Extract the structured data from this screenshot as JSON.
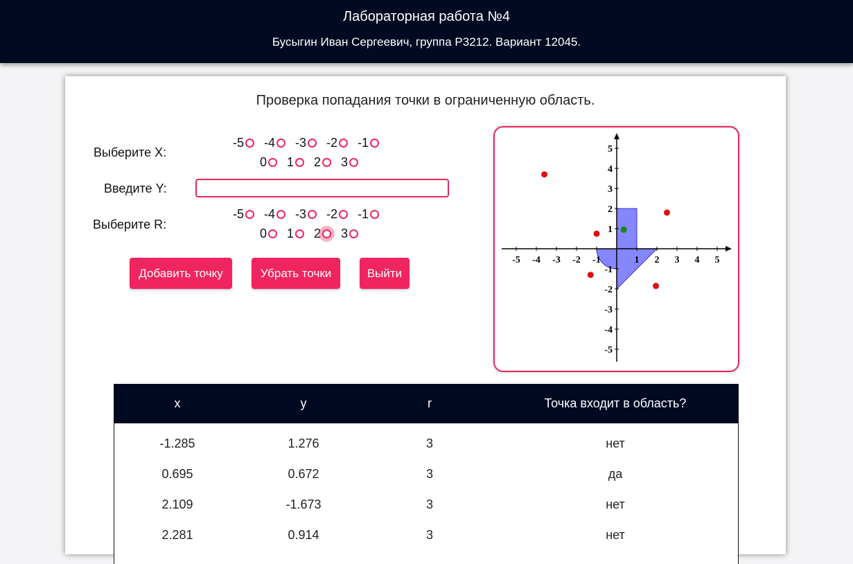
{
  "header": {
    "title": "Лабораторная работа №4",
    "subtitle": "Бусыгин Иван Сергеевич, группа P3212. Вариант 12045."
  },
  "form": {
    "heading": "Проверка попадания точки в ограниченную область.",
    "x_label": "Выберите X:",
    "y_label": "Введите Y:",
    "r_label": "Выберите R:",
    "y_value": "",
    "x_options_row1": [
      "-5",
      "-4",
      "-3",
      "-2",
      "-1"
    ],
    "x_options_row2": [
      "0",
      "1",
      "2",
      "3"
    ],
    "r_options_row1": [
      "-5",
      "-4",
      "-3",
      "-2",
      "-1"
    ],
    "r_options_row2": [
      "0",
      "1",
      "2",
      "3"
    ],
    "r_selected": "2",
    "buttons": {
      "add": "Добавить точку",
      "clear": "Убрать точки",
      "exit": "Выйти"
    }
  },
  "graph": {
    "x_ticks": [
      "-5",
      "-4",
      "-3",
      "-2",
      "-1",
      "1",
      "2",
      "3",
      "4",
      "5"
    ],
    "y_ticks": [
      "5",
      "4",
      "3",
      "2",
      "1",
      "-1",
      "-2",
      "-3",
      "-4",
      "-5"
    ],
    "area_color": "#7f7fff",
    "hit_color": "#108a10",
    "miss_color": "#e01010",
    "points": [
      {
        "x": -3.6,
        "y": 3.7,
        "hit": false
      },
      {
        "x": 2.5,
        "y": 1.8,
        "hit": false
      },
      {
        "x": -1.0,
        "y": 0.75,
        "hit": false
      },
      {
        "x": 0.35,
        "y": 0.95,
        "hit": true
      },
      {
        "x": -1.3,
        "y": -1.3,
        "hit": false
      },
      {
        "x": 1.95,
        "y": -1.85,
        "hit": false
      }
    ]
  },
  "table": {
    "headers": [
      "x",
      "y",
      "r",
      "Точка входит в область?"
    ],
    "rows": [
      {
        "x": "-1.285",
        "y": "1.276",
        "r": "3",
        "hit": "нет",
        "is_hit": false
      },
      {
        "x": "0.695",
        "y": "0.672",
        "r": "3",
        "hit": "да",
        "is_hit": true
      },
      {
        "x": "2.109",
        "y": "-1.673",
        "r": "3",
        "hit": "нет",
        "is_hit": false
      },
      {
        "x": "2.281",
        "y": "0.914",
        "r": "3",
        "hit": "нет",
        "is_hit": false
      }
    ]
  }
}
